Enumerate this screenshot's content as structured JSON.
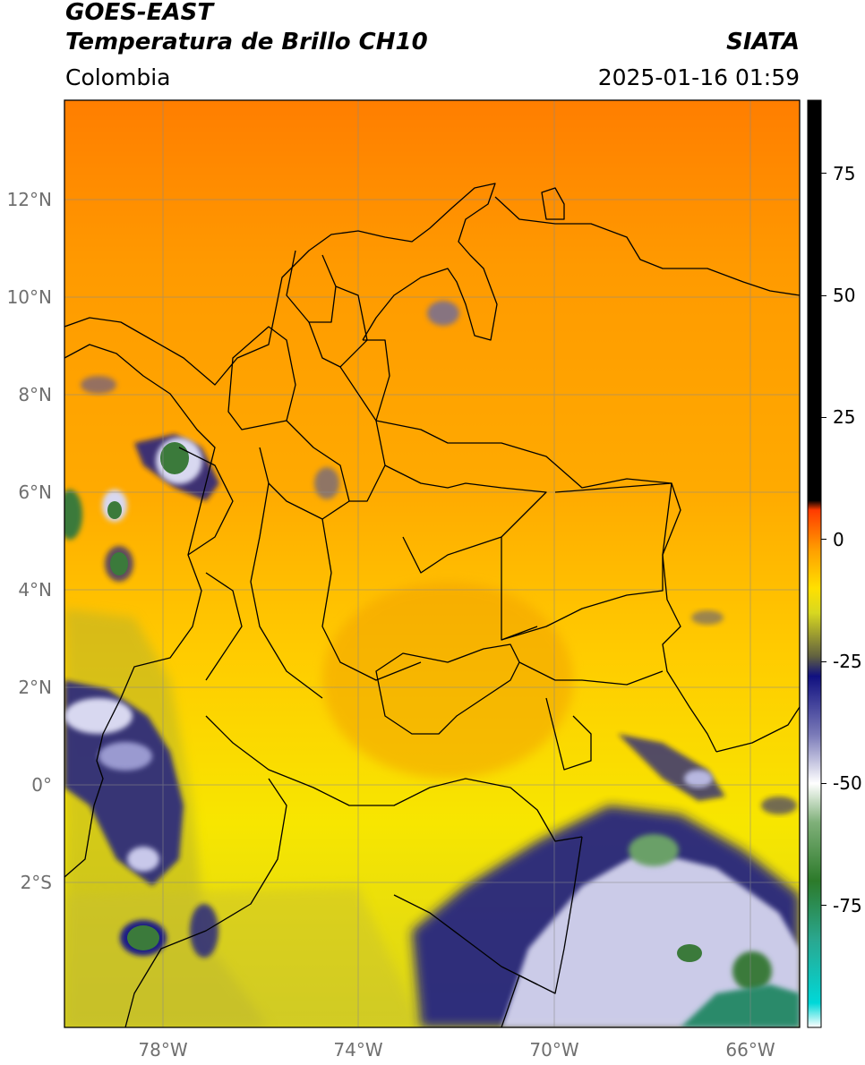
{
  "header": {
    "satellite": "GOES-EAST",
    "product": "Temperatura de Brillo CH10",
    "region": "Colombia",
    "agency": "SIATA",
    "datetime": "2025-01-16 01:59"
  },
  "map": {
    "lat_labels": [
      "12°N",
      "10°N",
      "8°N",
      "6°N",
      "4°N",
      "2°N",
      "0°",
      "2°S"
    ],
    "lon_labels": [
      "78°W",
      "74°W",
      "70°W",
      "66°W"
    ],
    "lon_range": [
      -80,
      -65
    ],
    "lat_range": [
      -5,
      14
    ],
    "gridlines": true
  },
  "colorbar": {
    "labels": [
      "75",
      "50",
      "25",
      "0",
      "-25",
      "-50",
      "-75"
    ],
    "values": [
      75,
      50,
      25,
      0,
      -25,
      -50,
      -75
    ],
    "range": [
      -100,
      90
    ],
    "stops": [
      {
        "value": -100,
        "color": "#ffffff"
      },
      {
        "value": -95,
        "color": "#00d8d8"
      },
      {
        "value": -82,
        "color": "#2aa78f"
      },
      {
        "value": -70,
        "color": "#2c7a2a"
      },
      {
        "value": -58,
        "color": "#7fb079"
      },
      {
        "value": -50,
        "color": "#ffffff"
      },
      {
        "value": -40,
        "color": "#7a7ab8"
      },
      {
        "value": -28,
        "color": "#101080"
      },
      {
        "value": -24,
        "color": "#606040"
      },
      {
        "value": -15,
        "color": "#d8d820"
      },
      {
        "value": -10,
        "color": "#ffe000"
      },
      {
        "value": -2,
        "color": "#ff9d00"
      },
      {
        "value": 6,
        "color": "#ff3b00"
      },
      {
        "value": 8,
        "color": "#000000"
      },
      {
        "value": 90,
        "color": "#000000"
      }
    ]
  },
  "colors": {
    "orange": "#ff8c00",
    "yellow": "#ffe000",
    "cloud_blue": "#101080",
    "cloud_green": "#3b7a3b",
    "grid": "#8a8a8a"
  }
}
